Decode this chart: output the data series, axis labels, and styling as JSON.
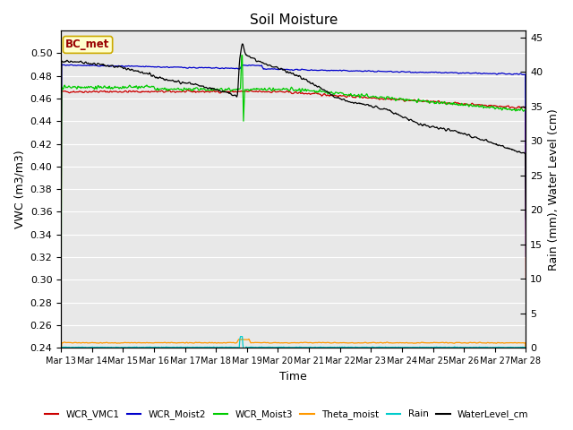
{
  "title": "Soil Moisture",
  "ylabel_left": "VWC (m3/m3)",
  "ylabel_right": "Rain (mm), Water Level (cm)",
  "xlabel": "Time",
  "annotation_text": "BC_met",
  "ylim_left": [
    0.24,
    0.52
  ],
  "ylim_right": [
    0,
    46
  ],
  "yticks_left": [
    0.24,
    0.26,
    0.28,
    0.3,
    0.32,
    0.34,
    0.36,
    0.38,
    0.4,
    0.42,
    0.44,
    0.46,
    0.48,
    0.5
  ],
  "yticks_right": [
    0,
    5,
    10,
    15,
    20,
    25,
    30,
    35,
    40,
    45
  ],
  "colors": {
    "WCR_VMC1": "#cc0000",
    "WCR_Moist2": "#0000cc",
    "WCR_Moist3": "#00cc00",
    "Theta_moist": "#ff9900",
    "Rain": "#00cccc",
    "WaterLevel_cm": "#000000"
  },
  "background_color": "#e8e8e8",
  "grid_color": "#ffffff"
}
